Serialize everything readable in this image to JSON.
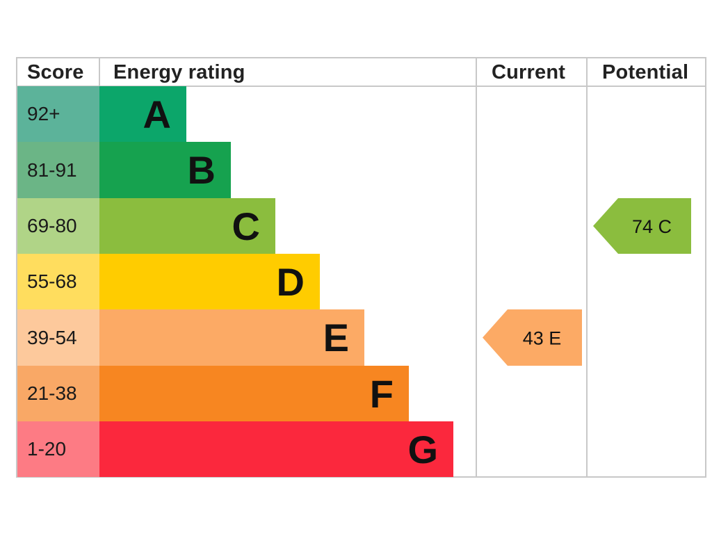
{
  "chart_data": {
    "type": "bar",
    "headers": {
      "score": "Score",
      "energy_rating": "Energy rating",
      "current": "Current",
      "potential": "Potential"
    },
    "bands": [
      {
        "letter": "A",
        "score_range": "92+",
        "color": "#0ca66a",
        "score_bg": "#5cb39a"
      },
      {
        "letter": "B",
        "score_range": "81-91",
        "color": "#16a24f",
        "score_bg": "#6bb586"
      },
      {
        "letter": "C",
        "score_range": "69-80",
        "color": "#8bbd3e",
        "score_bg": "#b0d487"
      },
      {
        "letter": "D",
        "score_range": "55-68",
        "color": "#ffcc00",
        "score_bg": "#ffdd5e"
      },
      {
        "letter": "E",
        "score_range": "39-54",
        "color": "#fcaa65",
        "score_bg": "#fdc99c"
      },
      {
        "letter": "F",
        "score_range": "21-38",
        "color": "#f78621",
        "score_bg": "#f9a866"
      },
      {
        "letter": "G",
        "score_range": "1-20",
        "color": "#fb283d",
        "score_bg": "#fd7b84"
      }
    ],
    "current": {
      "score": 43,
      "band": "E",
      "label": "43  E",
      "color": "#fcaa65"
    },
    "potential": {
      "score": 74,
      "band": "C",
      "label": "74  C",
      "color": "#8bbd3e"
    }
  }
}
